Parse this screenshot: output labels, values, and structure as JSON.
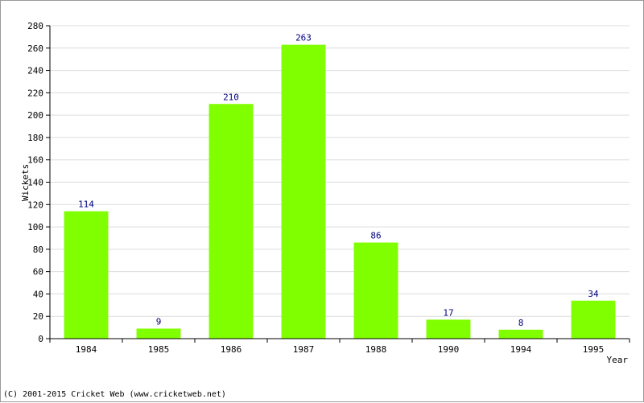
{
  "chart_data": {
    "type": "bar",
    "title": "",
    "xlabel": "Year",
    "ylabel": "Wickets",
    "categories": [
      "1984",
      "1985",
      "1986",
      "1987",
      "1988",
      "1990",
      "1994",
      "1995"
    ],
    "values": [
      114,
      9,
      210,
      263,
      86,
      17,
      8,
      34
    ],
    "ylim": [
      0,
      280
    ],
    "yticks": [
      0,
      20,
      40,
      60,
      80,
      100,
      120,
      140,
      160,
      180,
      200,
      220,
      240,
      260,
      280
    ],
    "grid": true,
    "legend": "none",
    "bar_color": "#80ff00",
    "label_color": "#000080"
  },
  "footer": {
    "copyright": "(C) 2001-2015 Cricket Web (www.cricketweb.net)"
  }
}
